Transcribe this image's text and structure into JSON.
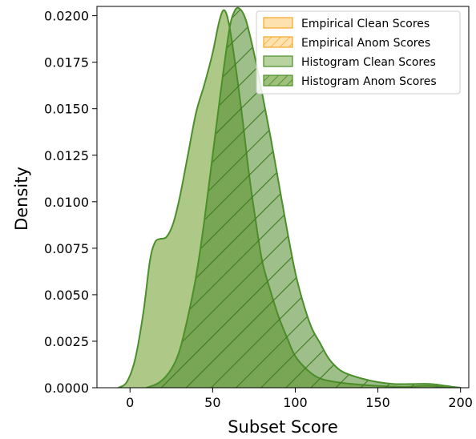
{
  "chart_data": {
    "type": "area",
    "title": "",
    "xlabel": "Subset Score",
    "ylabel": "Density",
    "xlim": [
      -20,
      205
    ],
    "ylim": [
      0,
      0.0205
    ],
    "xticks": [
      "0",
      "50",
      "100",
      "150",
      "200"
    ],
    "xtick_values": [
      0,
      50,
      100,
      150,
      200
    ],
    "yticks": [
      "0.0000",
      "0.0025",
      "0.0050",
      "0.0075",
      "0.0100",
      "0.0125",
      "0.0150",
      "0.0175",
      "0.0200"
    ],
    "ytick_values": [
      0,
      0.0025,
      0.005,
      0.0075,
      0.01,
      0.0125,
      0.015,
      0.0175,
      0.02
    ],
    "grid": false,
    "legend_position": "top-right",
    "legend": [
      {
        "label": "Empirical Clean Scores",
        "color": "#f5a623",
        "hatch": false
      },
      {
        "label": "Empirical Anom Scores",
        "color": "#f5a623",
        "hatch": true
      },
      {
        "label": "Histogram Clean Scores",
        "color": "#4a8f2a",
        "hatch": false
      },
      {
        "label": "Histogram Anom Scores",
        "color": "#4a8f2a",
        "hatch": true
      }
    ],
    "colors": {
      "empirical_edge": "#f5a623",
      "empirical_fill": "#fde2b0",
      "histogram_edge": "#4a8f2a",
      "histogram_fill": "#8fb35a"
    },
    "series": [
      {
        "name": "Histogram Clean Scores",
        "hatch": false,
        "x": [
          -7,
          -2,
          3,
          8,
          12,
          15,
          18,
          22,
          26,
          30,
          35,
          40,
          45,
          50,
          54,
          57,
          60,
          64,
          68,
          72,
          76,
          80,
          85,
          90,
          95,
          100,
          108,
          115,
          125,
          135,
          150,
          165,
          180,
          190,
          200
        ],
        "y": [
          0,
          0.0003,
          0.0015,
          0.004,
          0.0068,
          0.0078,
          0.008,
          0.0081,
          0.0088,
          0.0102,
          0.0125,
          0.0148,
          0.0163,
          0.018,
          0.0197,
          0.0203,
          0.0195,
          0.0172,
          0.0145,
          0.0115,
          0.009,
          0.0068,
          0.0052,
          0.0038,
          0.0027,
          0.0017,
          0.0009,
          0.0005,
          0.0003,
          0.0002,
          0.0001,
          5e-05,
          0.0001,
          4e-05,
          0
        ]
      },
      {
        "name": "Histogram Anom Scores",
        "hatch": true,
        "x": [
          10,
          18,
          25,
          30,
          35,
          40,
          45,
          50,
          55,
          60,
          63,
          66,
          70,
          75,
          80,
          85,
          90,
          95,
          100,
          105,
          110,
          115,
          120,
          125,
          130,
          140,
          150,
          160,
          170,
          182,
          195,
          200
        ],
        "y": [
          0,
          0.0003,
          0.001,
          0.002,
          0.0038,
          0.006,
          0.009,
          0.0125,
          0.016,
          0.0192,
          0.0202,
          0.0204,
          0.0198,
          0.018,
          0.0158,
          0.0135,
          0.011,
          0.0085,
          0.0062,
          0.0045,
          0.0032,
          0.0024,
          0.0016,
          0.0011,
          0.0008,
          0.0005,
          0.0003,
          0.0002,
          0.0002,
          0.0002,
          5e-05,
          0
        ]
      }
    ]
  }
}
